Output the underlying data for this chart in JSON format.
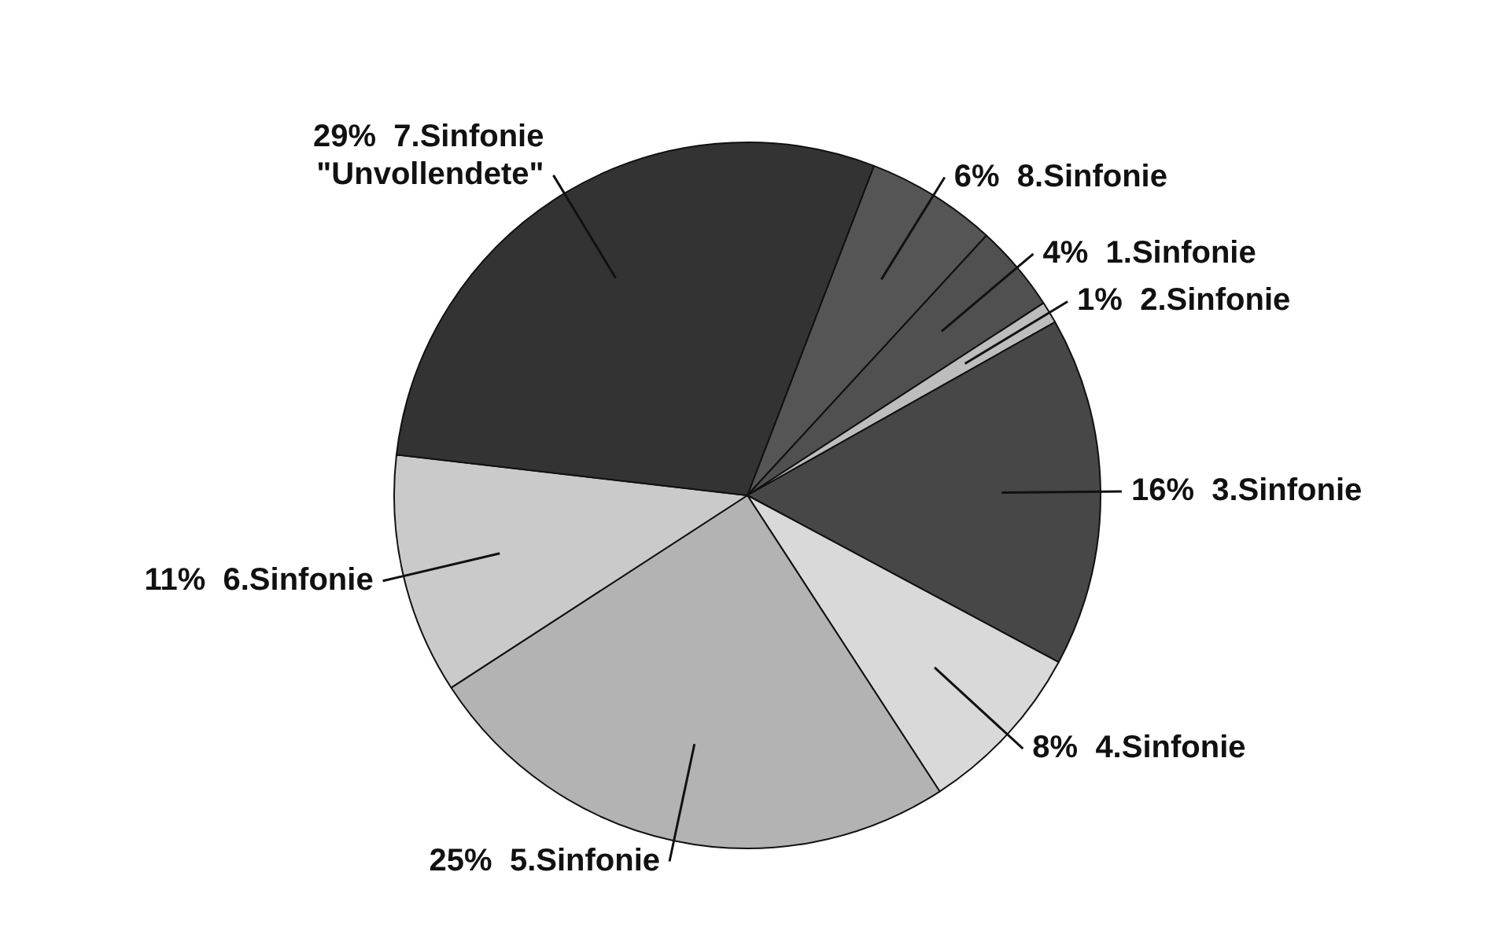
{
  "chart_data": {
    "type": "pie",
    "categories": [
      "8.Sinfonie",
      "1.Sinfonie",
      "2.Sinfonie",
      "3.Sinfonie",
      "4.Sinfonie",
      "5.Sinfonie",
      "6.Sinfonie",
      "7.Sinfonie \"Unvollendete\""
    ],
    "values": [
      6,
      4,
      1,
      16,
      8,
      25,
      11,
      29
    ],
    "value_labels": [
      "6%",
      "4%",
      "1%",
      "16%",
      "8%",
      "25%",
      "11%",
      "29%"
    ],
    "colors": [
      "#555555",
      "#505050",
      "#bdbdbd",
      "#474747",
      "#d9d9d9",
      "#b3b3b3",
      "#cacaca",
      "#333333"
    ],
    "legend": false
  }
}
